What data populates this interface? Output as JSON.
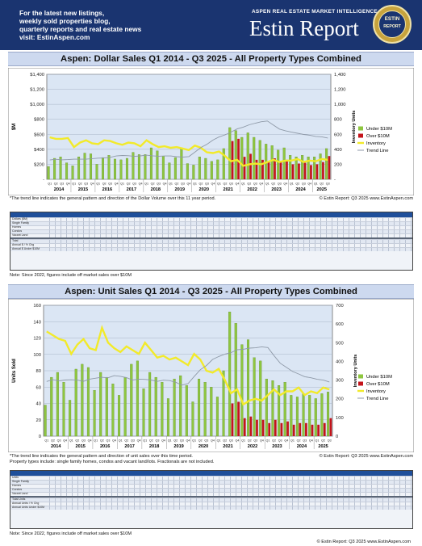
{
  "header": {
    "lines": [
      "For the latest new listings,",
      "weekly sold properties blog,",
      "quarterly reports and real estate news",
      "visit: EstinAspen.com"
    ],
    "tagline": "ASPEN REAL ESTATE MARKET INTELLIGENCE",
    "brand": "Estin Report",
    "seal_top": "ESTIN",
    "seal_bottom": "REPORT"
  },
  "chart_data": [
    {
      "type": "bar",
      "title": "Aspen:  Dollar Sales Q1 2014 - Q3 2025 - All Property Types Combined",
      "ylabel": "$M",
      "y2label": "Inventory Units",
      "ylim": [
        0,
        1400
      ],
      "y2lim": [
        0,
        1400
      ],
      "yticks": [
        "-",
        "$200",
        "$400",
        "$600",
        "$800",
        "$1,000",
        "$1,200",
        "$1,400"
      ],
      "y2ticks": [
        "-",
        "200",
        "400",
        "600",
        "800",
        "1,000",
        "1,200",
        "1,400"
      ],
      "quarter_labels": [
        "Q1",
        "Q2",
        "Q3",
        "Q4"
      ],
      "years": [
        "2014",
        "2015",
        "2016",
        "2017",
        "2018",
        "2019",
        "2020",
        "2021",
        "2022",
        "2023",
        "2024",
        "2025"
      ],
      "legend_position": "right",
      "series": [
        {
          "name": "Under $10M",
          "color": "#8ec63f",
          "values": [
            170,
            280,
            300,
            220,
            180,
            300,
            350,
            340,
            200,
            290,
            320,
            270,
            260,
            280,
            360,
            330,
            330,
            420,
            380,
            310,
            220,
            290,
            420,
            210,
            190,
            300,
            280,
            240,
            260,
            410,
            690,
            650,
            560,
            620,
            560,
            520,
            470,
            450,
            390,
            420,
            320,
            300,
            320,
            300,
            300,
            340,
            410
          ]
        },
        {
          "name": "Over $10M",
          "color": "#c4141b",
          "values": [
            0,
            0,
            0,
            0,
            0,
            0,
            0,
            0,
            0,
            0,
            0,
            0,
            0,
            0,
            0,
            0,
            0,
            0,
            0,
            0,
            0,
            0,
            0,
            0,
            0,
            0,
            0,
            0,
            0,
            0,
            510,
            540,
            300,
            340,
            260,
            260,
            230,
            280,
            230,
            260,
            200,
            210,
            220,
            190,
            200,
            230,
            310
          ]
        },
        {
          "name": "Inventory",
          "color": "#f2ea2a",
          "values": [
            560,
            540,
            540,
            550,
            430,
            490,
            520,
            480,
            470,
            520,
            510,
            480,
            460,
            490,
            480,
            440,
            520,
            470,
            430,
            440,
            420,
            430,
            410,
            390,
            450,
            420,
            360,
            350,
            370,
            310,
            240,
            260,
            180,
            200,
            210,
            200,
            230,
            260,
            230,
            250,
            250,
            270,
            230,
            250,
            240,
            270,
            260
          ]
        },
        {
          "name": "Trend Line",
          "color": "#8f9aa8",
          "values": []
        }
      ],
      "footnote": "*The trend line indicates the general pattern and direction of the Dollar Volume over this 11 year period.",
      "copyright": "© Estin Report: Q3 2025 www.EstinAspen.com",
      "note": "Note: Since 2022, figures include off market sales over $10M"
    },
    {
      "type": "bar",
      "title": "Aspen:  Unit Sales Q1 2014 - Q3 2025 - All Property Types Combined",
      "ylabel": "Units Sold",
      "y2label": "Inventory Units",
      "ylim": [
        0,
        160
      ],
      "y2lim": [
        0,
        700
      ],
      "yticks": [
        "0",
        "20",
        "40",
        "60",
        "80",
        "100",
        "120",
        "140",
        "160"
      ],
      "y2ticks": [
        "0",
        "100",
        "200",
        "300",
        "400",
        "500",
        "600",
        "700"
      ],
      "quarter_labels": [
        "Q1",
        "Q2",
        "Q3",
        "Q4"
      ],
      "years": [
        "2014",
        "2015",
        "2016",
        "2017",
        "2018",
        "2019",
        "2020",
        "2021",
        "2022",
        "2023",
        "2024",
        "2025"
      ],
      "legend_position": "right",
      "series": [
        {
          "name": "Under $10M",
          "color": "#8ec63f",
          "values": [
            38,
            72,
            78,
            66,
            44,
            82,
            88,
            84,
            56,
            78,
            72,
            64,
            50,
            72,
            88,
            92,
            58,
            78,
            72,
            66,
            46,
            70,
            74,
            62,
            42,
            70,
            66,
            60,
            48,
            80,
            152,
            138,
            112,
            118,
            96,
            92,
            70,
            68,
            62,
            66,
            50,
            48,
            52,
            50,
            46,
            52,
            54
          ]
        },
        {
          "name": "Over $10M",
          "color": "#c4141b",
          "values": [
            0,
            0,
            0,
            0,
            0,
            0,
            0,
            0,
            0,
            0,
            0,
            0,
            0,
            0,
            0,
            0,
            0,
            0,
            0,
            0,
            0,
            0,
            0,
            0,
            0,
            0,
            0,
            0,
            0,
            0,
            40,
            42,
            22,
            24,
            20,
            20,
            16,
            20,
            16,
            18,
            14,
            16,
            16,
            14,
            14,
            16,
            22
          ]
        },
        {
          "name": "Inventory",
          "color": "#f2ea2a",
          "values": [
            560,
            540,
            520,
            510,
            440,
            490,
            520,
            470,
            460,
            580,
            500,
            470,
            450,
            480,
            460,
            440,
            500,
            460,
            420,
            430,
            410,
            420,
            400,
            380,
            440,
            410,
            350,
            340,
            360,
            300,
            230,
            250,
            170,
            190,
            200,
            190,
            220,
            250,
            220,
            240,
            240,
            260,
            220,
            240,
            230,
            260,
            250
          ]
        },
        {
          "name": "Trend Line",
          "color": "#8f9aa8",
          "values": []
        }
      ],
      "footnote": "*The trend line indicates the general pattern and direction of unit sales over this time period.",
      "footnote2": "Property types include: single family homes, condos and vacant land/lots. Fractionals are not included.",
      "copyright": "© Estin Report: Q3 2025 www.EstinAspen.com",
      "note": "Note: Since 2022, figures include off market sales over $10M"
    }
  ],
  "table1": {
    "row_labels": [
      "Dollars ($M)",
      "Single Family",
      "Homes",
      "Condos",
      "Vacant Land",
      "Total",
      "Annual $ / % Chg",
      "Annual $ Under $10M"
    ]
  },
  "table2": {
    "row_labels": [
      "Units",
      "Single Family",
      "Homes",
      "Condos",
      "Vacant Land",
      "Total Units",
      "Annual Units / % Chg",
      "Annual Units Under $10M"
    ]
  }
}
